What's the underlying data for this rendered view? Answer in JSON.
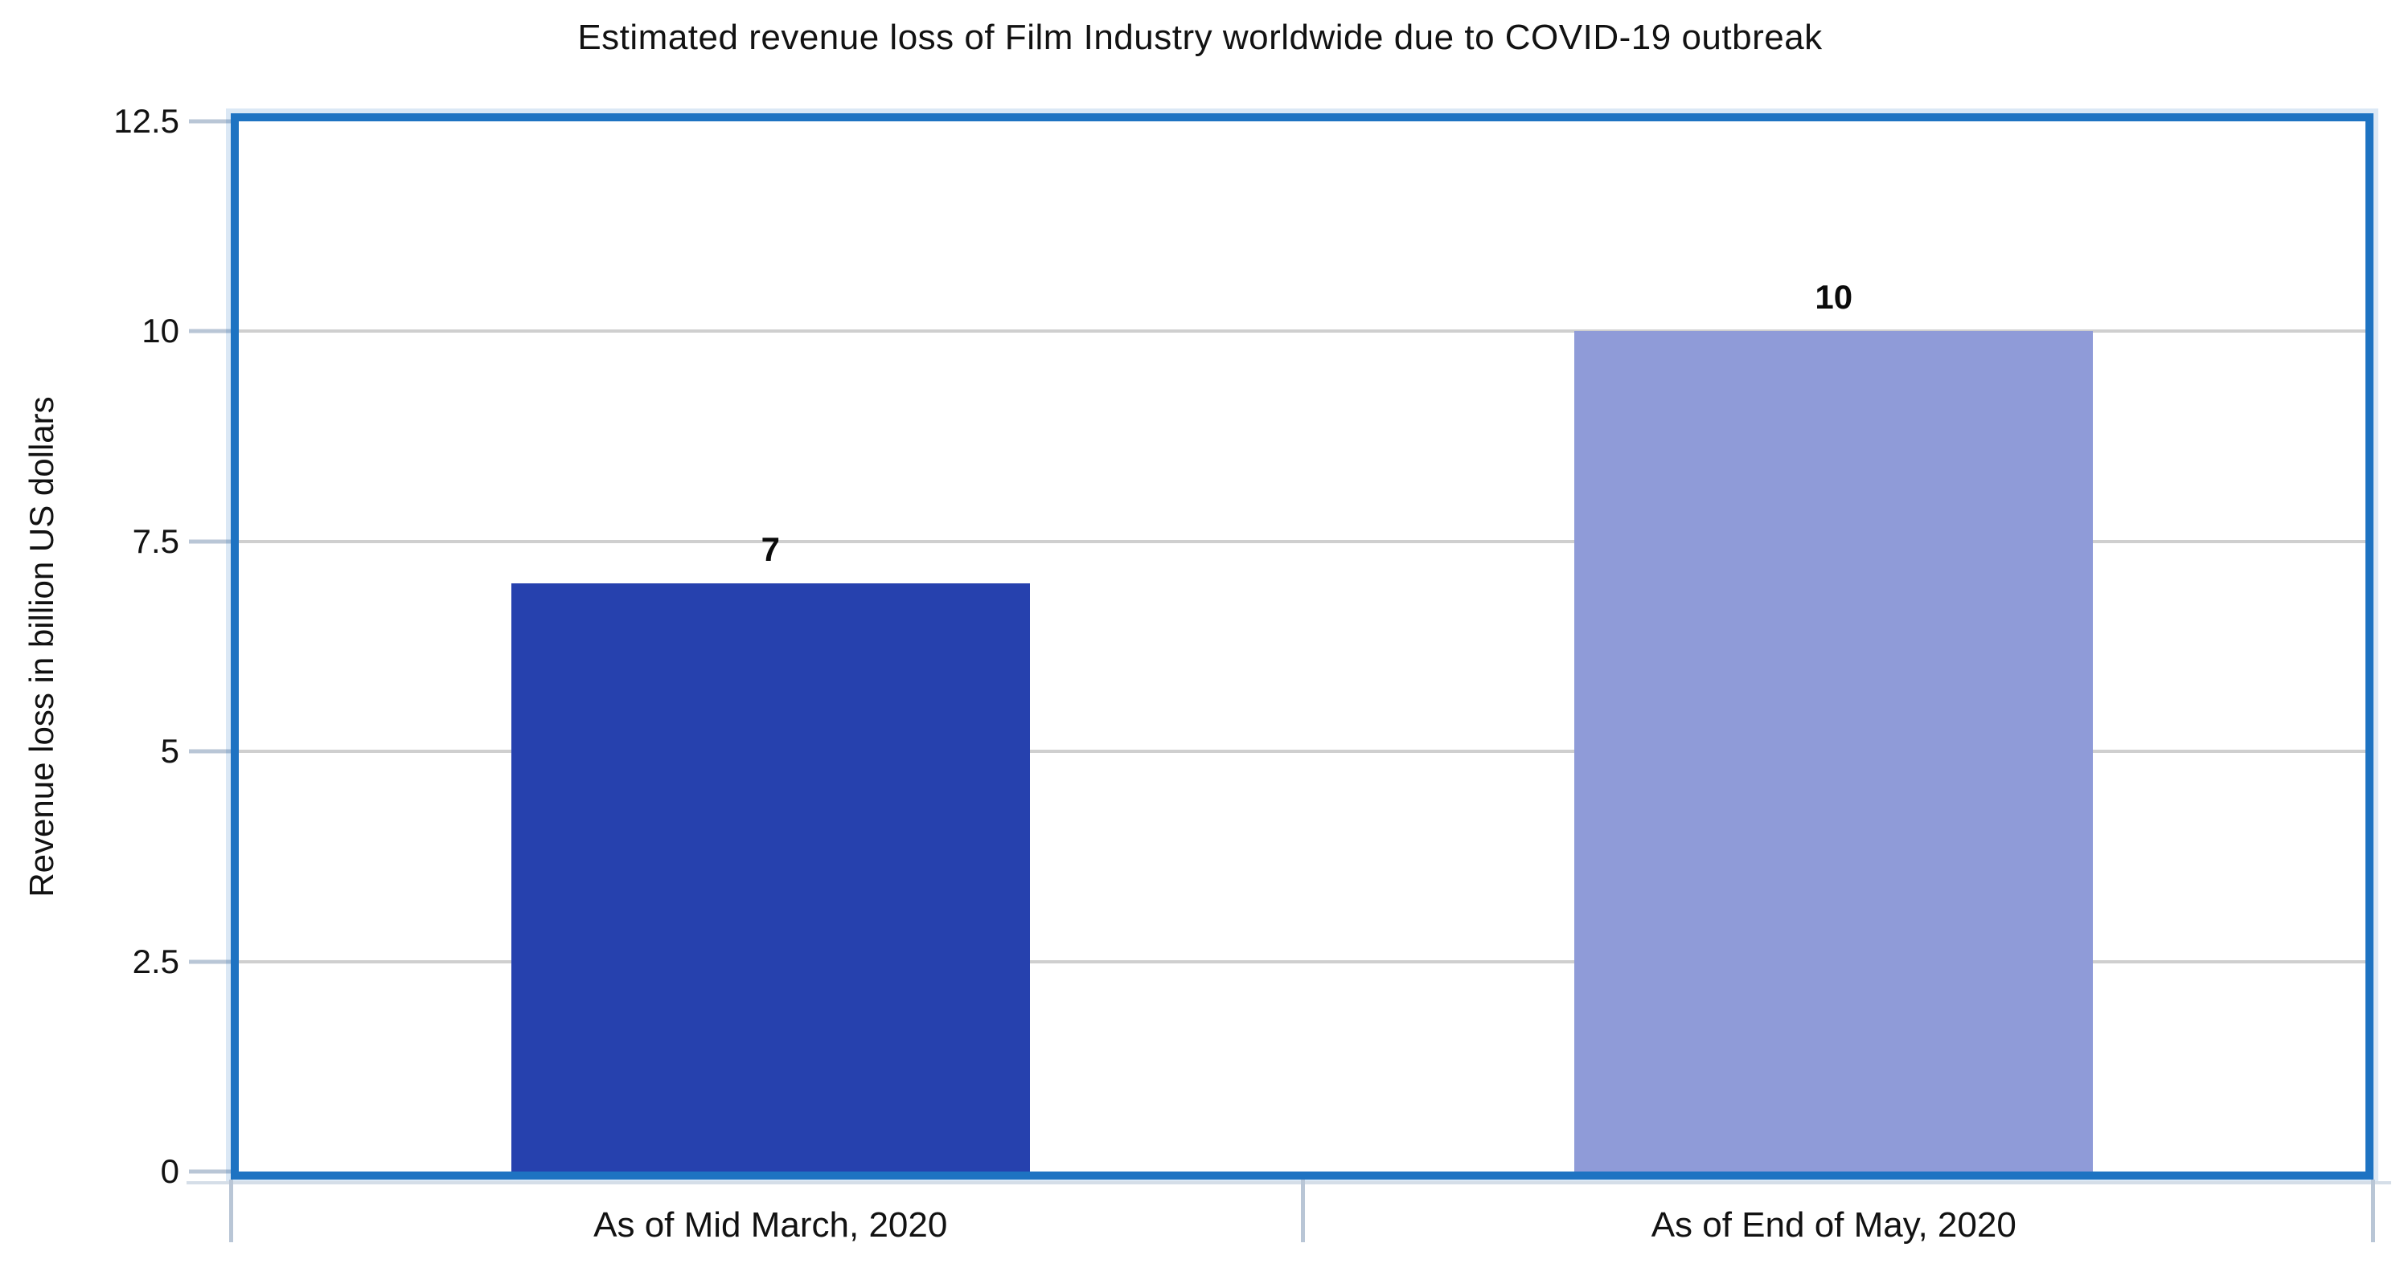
{
  "chart_data": {
    "type": "bar",
    "title": "Estimated revenue loss of Film Industry worldwide due to COVID-19 outbreak",
    "xlabel": "",
    "ylabel": "Revenue loss in billion US dollars",
    "categories": [
      "As of Mid March, 2020",
      "As of End of May, 2020"
    ],
    "values": [
      7,
      10
    ],
    "value_labels": [
      "7",
      "10"
    ],
    "bar_colors": [
      "#2641AE",
      "#8F9BD8"
    ],
    "ylim": [
      0,
      12.5
    ],
    "yticks": [
      0,
      2.5,
      5,
      7.5,
      10,
      12.5
    ],
    "ytick_labels": [
      "0",
      "2.5",
      "5",
      "7.5",
      "10",
      "12.5"
    ],
    "grid": "horizontal gridlines on",
    "legend": "none",
    "colors": {
      "frame": "#1E73C2",
      "gridline": "#CFCFCF",
      "tick": "#B9C6D6",
      "text": "#121212",
      "background": "#FFFFFF"
    }
  }
}
